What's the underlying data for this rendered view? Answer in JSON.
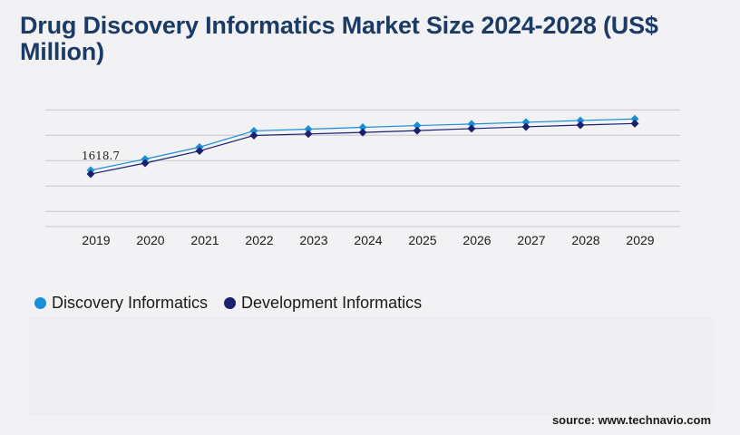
{
  "title": "Drug Discovery Informatics Market Size 2024-2028 (US$ Million)",
  "source": "source: www.technavio.com",
  "colors": {
    "background": "#f2f2f4",
    "title": "#1b3a66",
    "discovery": "#1a8fd8",
    "development": "#1a1f6e",
    "gridline": "#c8c8cc"
  },
  "chart_data": {
    "type": "line",
    "categories": [
      "2019",
      "2020",
      "2021",
      "2022",
      "2023",
      "2024",
      "2025",
      "2026",
      "2027",
      "2028",
      "2029"
    ],
    "series": [
      {
        "name": "Discovery Informatics",
        "values": [
          1618.7,
          2060,
          2530,
          3170,
          3240,
          3310,
          3380,
          3440,
          3510,
          3580,
          3640
        ]
      },
      {
        "name": "Development Informatics",
        "values": [
          1470,
          1900,
          2380,
          2990,
          3050,
          3110,
          3180,
          3260,
          3330,
          3400,
          3460
        ]
      }
    ],
    "data_labels": [
      {
        "series": 0,
        "index": 0,
        "text": "1618.7"
      }
    ],
    "ylim": [
      -600,
      4400
    ],
    "grid": true,
    "legend_position": "bottom-left"
  }
}
